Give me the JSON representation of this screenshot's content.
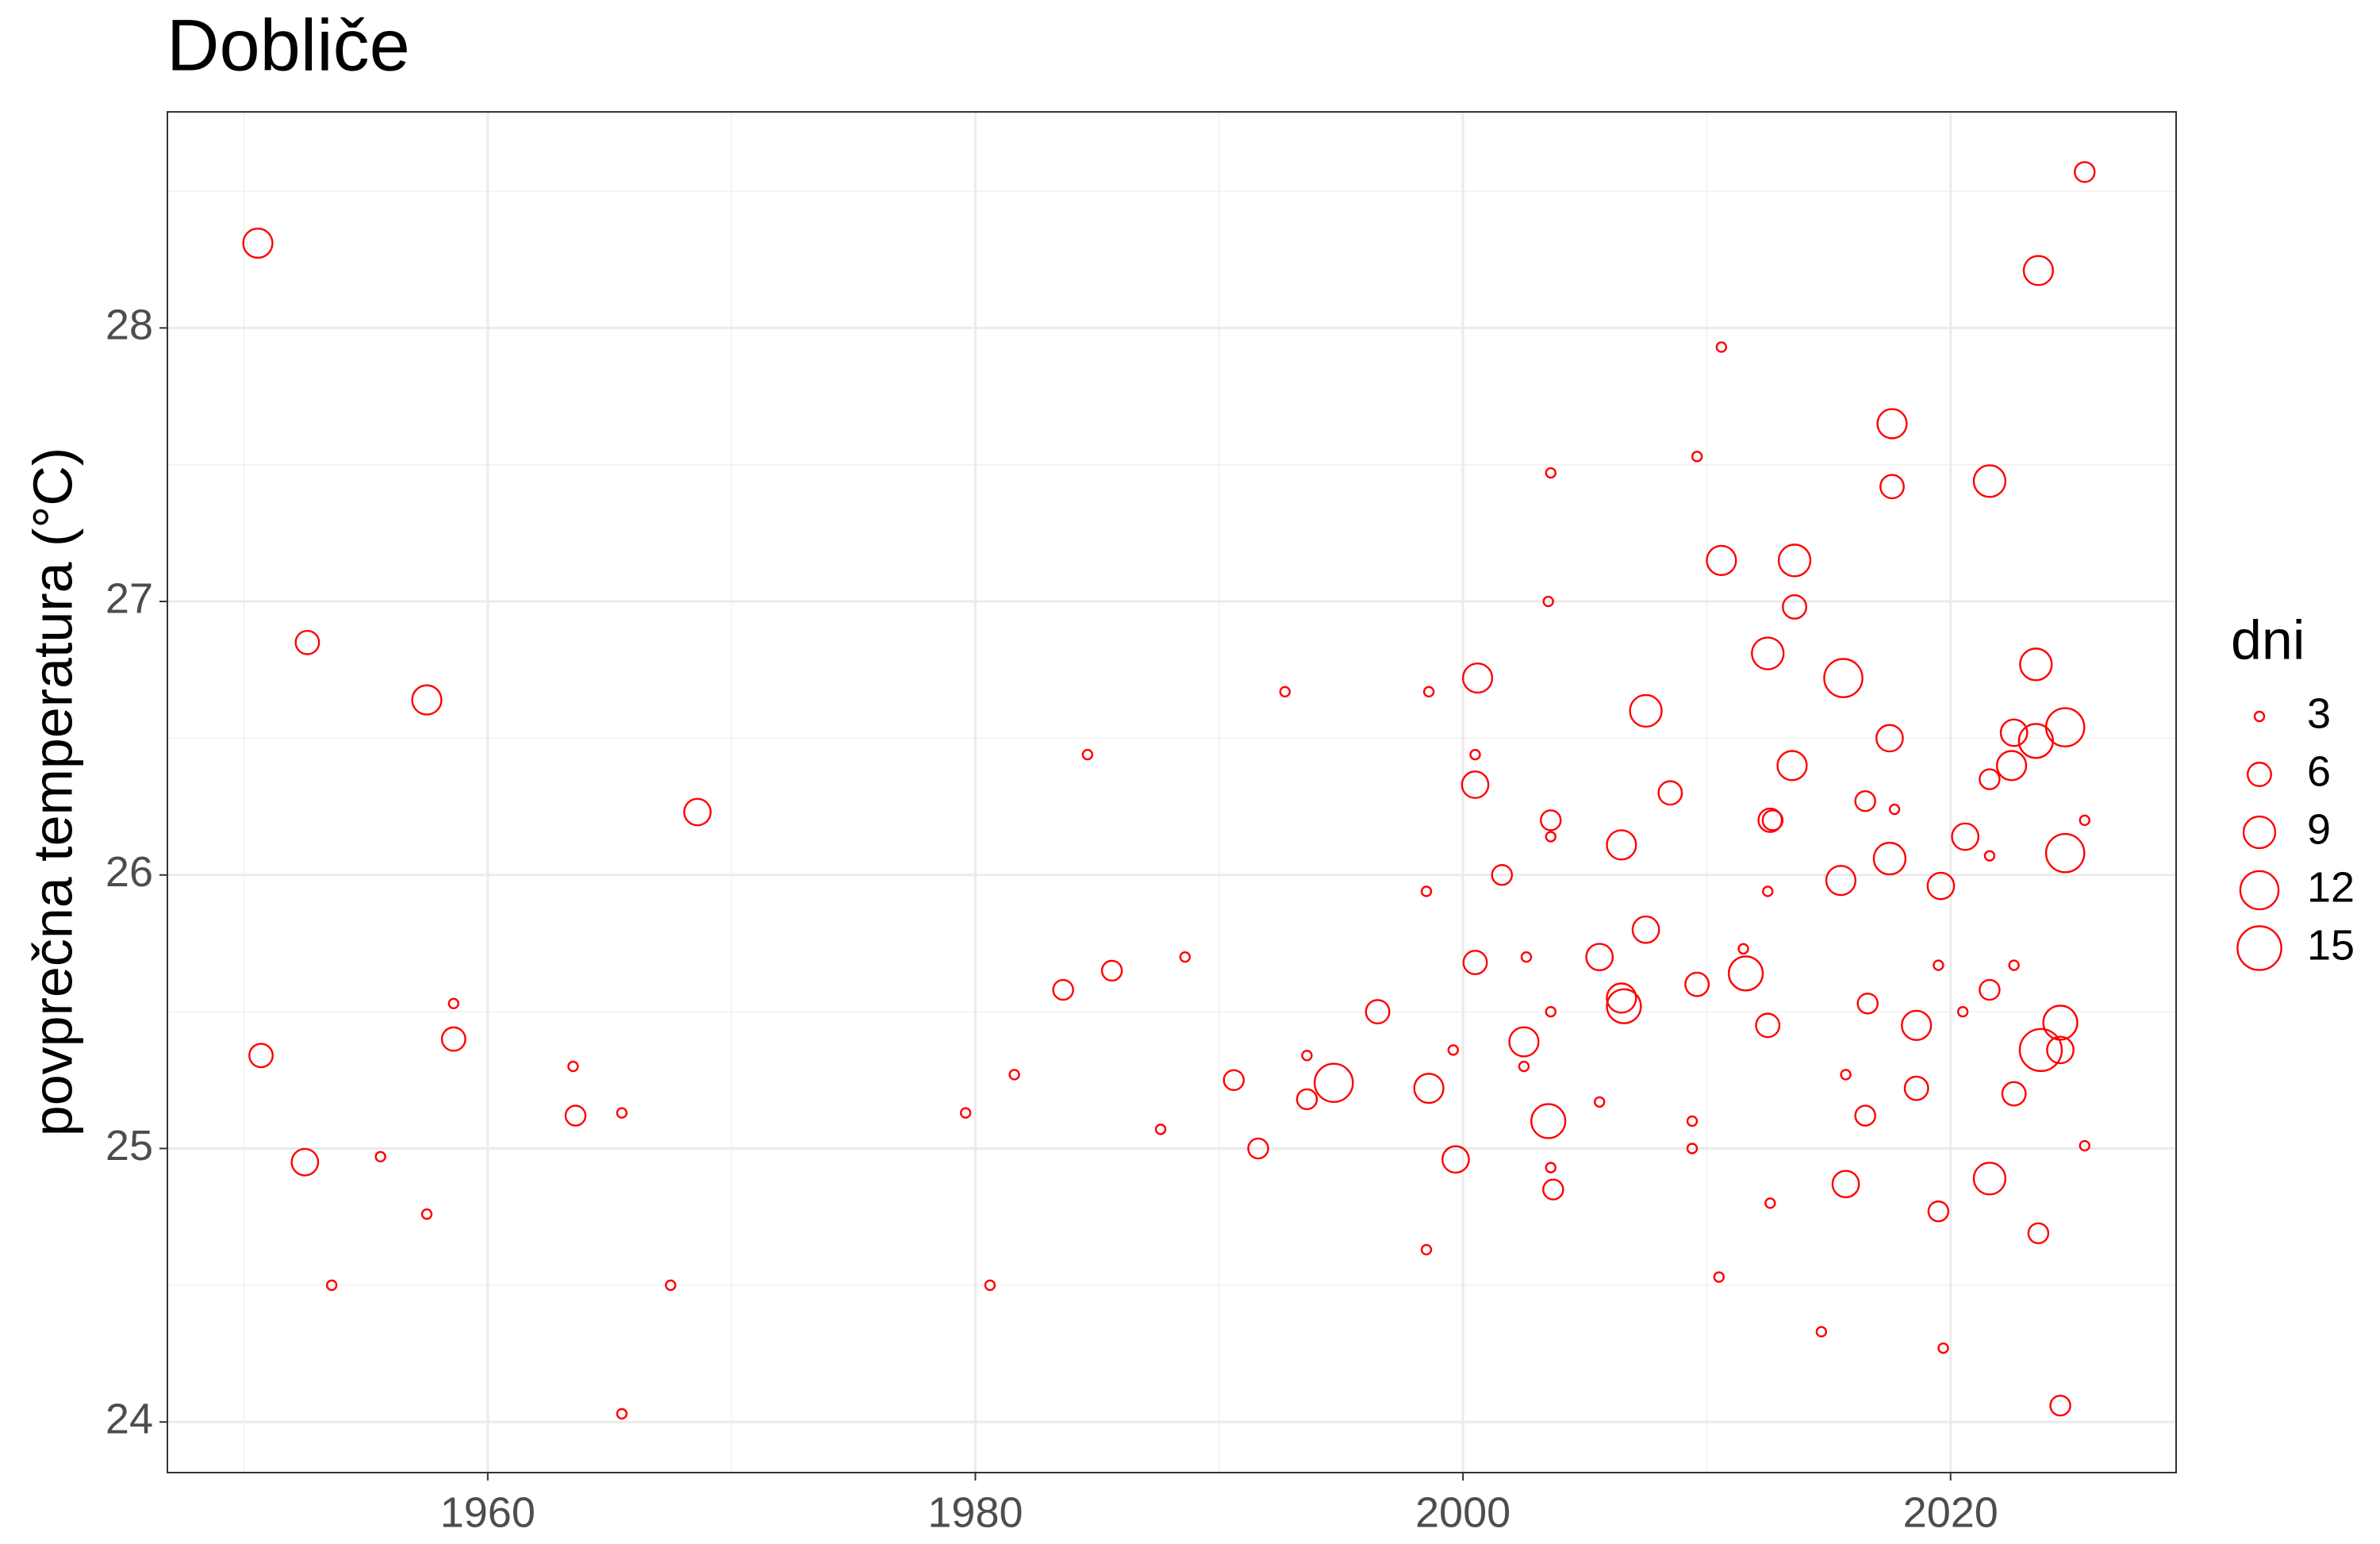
{
  "chart_data": {
    "type": "scatter",
    "title": "Dobliče",
    "y_label": "povprečna temperatura (°C)",
    "size_label": "dni",
    "xlim": [
      1946.86,
      2029.25
    ],
    "ylim": [
      23.815,
      28.79
    ],
    "xticks": [
      1960,
      1980,
      2000,
      2020
    ],
    "yticks": [
      24,
      25,
      26,
      27,
      28
    ],
    "size_ticks": [
      3,
      6,
      9,
      12,
      15
    ],
    "sizelim": [
      3,
      15
    ],
    "grid": true,
    "legend": "right",
    "series": [
      {
        "color": "#ff0000",
        "x": [
          1950.57,
          1952.6,
          1957.5,
          1950.7,
          1952.5,
          1953.6,
          1955.6,
          1957.5,
          1958.6,
          1958.6,
          1963.5,
          1963.6,
          1965.5,
          1965.5,
          1967.5,
          1968.6,
          1979.6,
          1980.6,
          1981.6,
          1983.6,
          1984.6,
          1985.6,
          1987.6,
          1988.6,
          1990.6,
          1991.6,
          1992.7,
          1993.6,
          1993.6,
          1994.7,
          1996.5,
          1998.5,
          1998.6,
          1998.6,
          1998.5,
          1999.6,
          1999.7,
          2000.5,
          2000.5,
          2000.6,
          2000.5,
          2001.6,
          2002.5,
          2002.5,
          2002.6,
          2003.5,
          2003.6,
          2003.5,
          2003.6,
          2003.6,
          2003.6,
          2003.6,
          2003.7,
          2005.6,
          2005.6,
          2006.5,
          2006.5,
          2006.6,
          2007.5,
          2007.5,
          2008.5,
          2009.6,
          2009.6,
          2009.4,
          2009.4,
          2010.6,
          2010.6,
          2010.5,
          2011.5,
          2011.6,
          2012.5,
          2012.6,
          2012.7,
          2012.5,
          2012.5,
          2012.6,
          2013.6,
          2013.6,
          2013.5,
          2014.7,
          2015.6,
          2015.5,
          2015.7,
          2015.7,
          2016.5,
          2016.5,
          2016.6,
          2017.6,
          2017.6,
          2017.5,
          2017.7,
          2017.5,
          2018.6,
          2018.6,
          2019.6,
          2019.5,
          2019.5,
          2019.7,
          2020.6,
          2020.5,
          2021.6,
          2021.6,
          2021.6,
          2021.6,
          2021.6,
          2022.6,
          2022.5,
          2022.6,
          2022.6,
          2023.6,
          2023.5,
          2023.5,
          2023.7,
          2023.6,
          2024.7,
          2024.7,
          2024.5,
          2024.5,
          2024.5,
          2025.5,
          2025.5,
          2025.5
        ],
        "values": [
          28.31,
          26.85,
          26.64,
          25.34,
          24.95,
          24.5,
          24.97,
          24.76,
          25.53,
          25.4,
          25.3,
          25.12,
          25.13,
          24.03,
          24.5,
          26.23,
          25.13,
          24.5,
          25.27,
          25.58,
          26.44,
          25.65,
          25.07,
          25.7,
          25.25,
          25.0,
          26.67,
          25.34,
          25.18,
          25.24,
          25.5,
          25.94,
          26.67,
          25.22,
          24.63,
          25.36,
          24.96,
          26.44,
          26.33,
          26.72,
          25.68,
          26.0,
          25.39,
          25.3,
          25.7,
          25.1,
          27.47,
          27.0,
          26.2,
          26.14,
          25.5,
          24.93,
          24.85,
          25.17,
          25.7,
          26.11,
          25.55,
          25.52,
          26.6,
          25.8,
          26.3,
          27.53,
          25.6,
          25.1,
          25.0,
          27.93,
          27.15,
          24.53,
          25.73,
          25.64,
          26.81,
          26.2,
          26.2,
          25.94,
          25.45,
          24.8,
          27.15,
          26.98,
          26.4,
          24.33,
          26.72,
          25.98,
          24.87,
          25.27,
          25.12,
          26.27,
          25.53,
          27.65,
          27.42,
          26.5,
          26.24,
          26.06,
          25.45,
          25.22,
          25.96,
          25.67,
          24.77,
          24.27,
          26.14,
          25.5,
          27.44,
          26.35,
          26.07,
          25.58,
          24.89,
          26.52,
          26.4,
          25.67,
          25.2,
          28.21,
          26.77,
          26.49,
          25.36,
          24.69,
          26.54,
          26.08,
          25.46,
          25.36,
          24.06,
          28.57,
          26.2,
          25.01
        ],
        "sizes": [
          8,
          6,
          8,
          6,
          7,
          3,
          3,
          3,
          3,
          6,
          3,
          5,
          3,
          3,
          3,
          7,
          3,
          3,
          3,
          5,
          3,
          5,
          3,
          3,
          5,
          5,
          3,
          3,
          5,
          12,
          6,
          3,
          3,
          8,
          3,
          3,
          7,
          3,
          7,
          8,
          6,
          5,
          8,
          3,
          3,
          10,
          3,
          3,
          5,
          3,
          3,
          3,
          5,
          3,
          7,
          8,
          8,
          10,
          9,
          7,
          6,
          3,
          6,
          3,
          3,
          3,
          8,
          3,
          3,
          10,
          9,
          6,
          5,
          3,
          6,
          3,
          9,
          6,
          8,
          3,
          12,
          8,
          7,
          3,
          5,
          5,
          5,
          8,
          6,
          7,
          3,
          9,
          8,
          6,
          7,
          3,
          5,
          3,
          7,
          3,
          9,
          5,
          3,
          5,
          9,
          7,
          8,
          3,
          6,
          8,
          9,
          10,
          14,
          5,
          12,
          12,
          10,
          7,
          5,
          5,
          3,
          3
        ]
      }
    ]
  }
}
